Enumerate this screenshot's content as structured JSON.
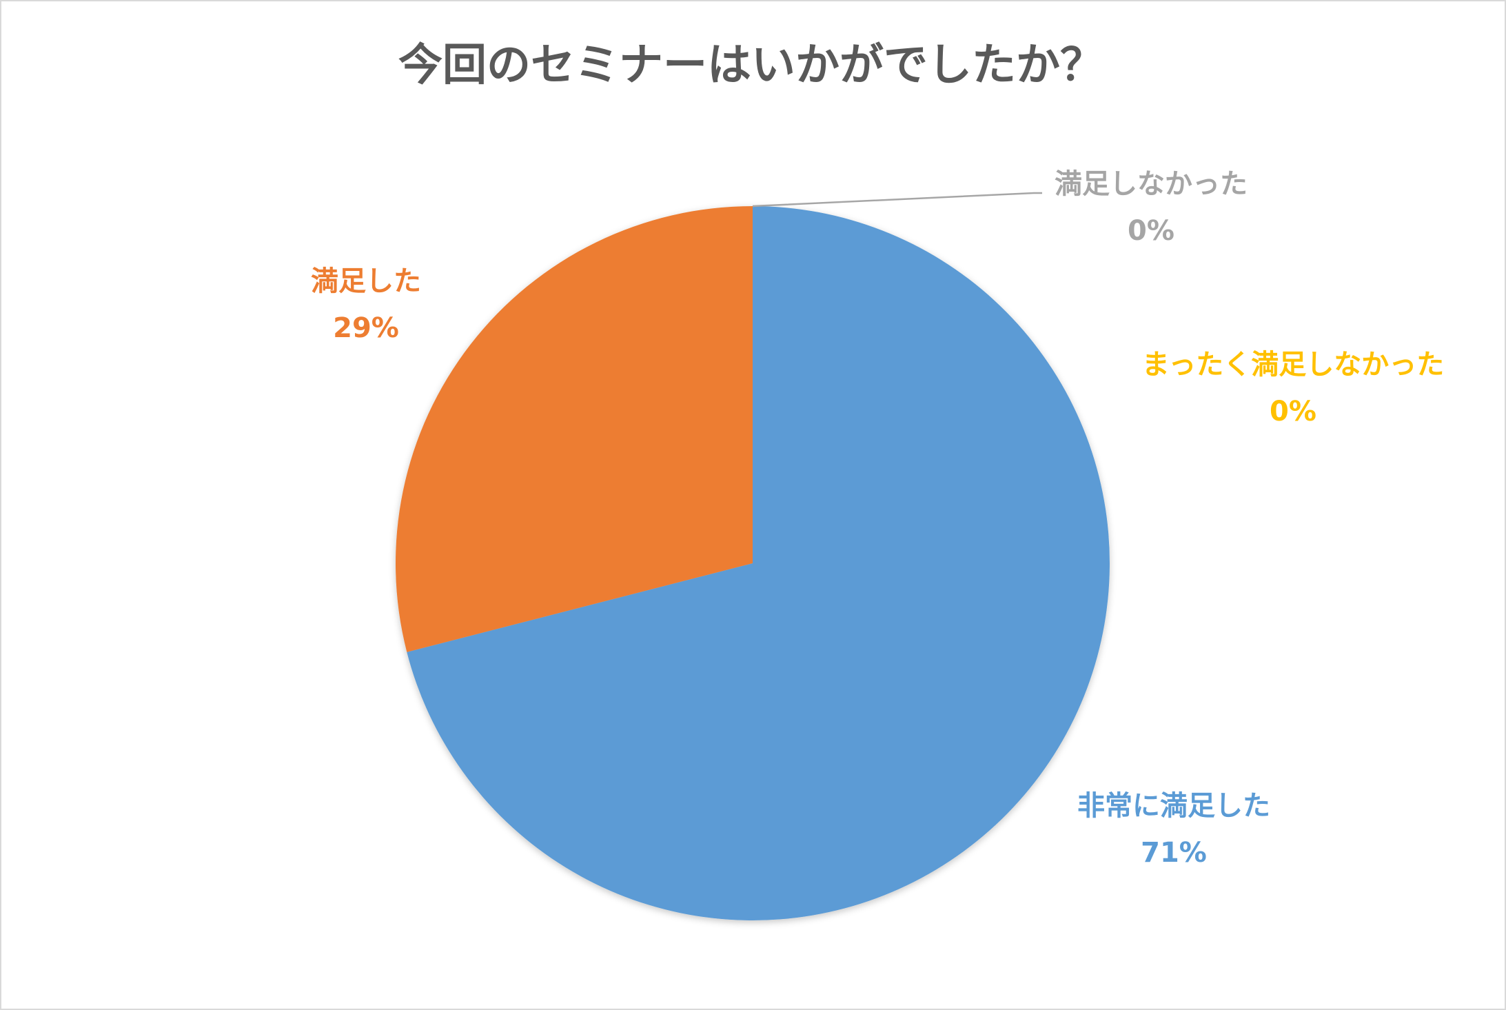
{
  "chart_data": {
    "type": "pie",
    "title": "今回のセミナーはいかがでしたか？",
    "slices": [
      {
        "label": "非常に満足した",
        "value": 71,
        "value_label": "71%",
        "color": "#5b9bd5"
      },
      {
        "label": "満足した",
        "value": 29,
        "value_label": "29%",
        "color": "#ed7d31"
      },
      {
        "label": "満足しなかった",
        "value": 0,
        "value_label": "0%",
        "color": "#a5a5a5"
      },
      {
        "label": "まったく満足しなかった",
        "value": 0,
        "value_label": "0%",
        "color": "#ffc000"
      }
    ],
    "start_angle": "12 o'clock",
    "direction": "clockwise",
    "legend": "none",
    "data_labels": "category name and percentage, outside the pie"
  },
  "colors": {
    "title": "#595959",
    "leader_line": "#a6a6a6",
    "frame_border": "#d9d9d9",
    "background": "#ffffff"
  }
}
